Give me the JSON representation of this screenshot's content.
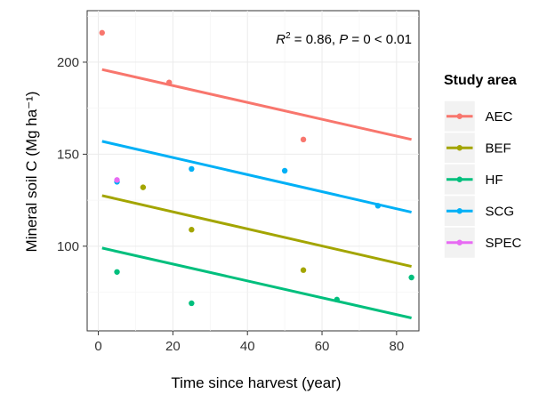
{
  "chart_data": {
    "type": "scatter",
    "xlabel": "Time since harvest (year)",
    "ylabel": "Mineral soil C (Mg ha⁻¹)",
    "xlim": [
      -3,
      86
    ],
    "ylim": [
      54,
      228
    ],
    "xticks": [
      0,
      20,
      40,
      60,
      80
    ],
    "yticks": [
      100,
      150,
      200
    ],
    "grid": true,
    "legend": {
      "title": "Study area",
      "placement": "right",
      "entries": [
        "AEC",
        "BEF",
        "HF",
        "SCG",
        "SPEC"
      ]
    },
    "annotation": {
      "r_label": "R",
      "r_sup": "2",
      "equals_r": " = 0.86, ",
      "p_label": "P",
      "p_text": " = 0 < 0.01"
    },
    "series": [
      {
        "name": "AEC",
        "color": "#F8766D",
        "points": [
          [
            1,
            216
          ],
          [
            19,
            189
          ],
          [
            55,
            158
          ]
        ],
        "fit": [
          [
            1,
            196
          ],
          [
            84,
            158
          ]
        ]
      },
      {
        "name": "BEF",
        "color": "#A3A500",
        "points": [
          [
            12,
            132
          ],
          [
            25,
            109
          ],
          [
            55,
            87
          ]
        ],
        "fit": [
          [
            1,
            127.5
          ],
          [
            84,
            89
          ]
        ]
      },
      {
        "name": "HF",
        "color": "#00BF7D",
        "points": [
          [
            5,
            86
          ],
          [
            25,
            69
          ],
          [
            64,
            71
          ],
          [
            84,
            83
          ]
        ],
        "fit": [
          [
            1,
            99
          ],
          [
            84,
            61
          ]
        ]
      },
      {
        "name": "SCG",
        "color": "#00B0F6",
        "points": [
          [
            5,
            135
          ],
          [
            25,
            142
          ],
          [
            50,
            141
          ],
          [
            75,
            122
          ]
        ],
        "fit": [
          [
            1,
            157
          ],
          [
            84,
            118.5
          ]
        ]
      },
      {
        "name": "SPEC",
        "color": "#E76BF3",
        "points": [
          [
            5,
            136
          ]
        ],
        "fit": []
      }
    ]
  }
}
